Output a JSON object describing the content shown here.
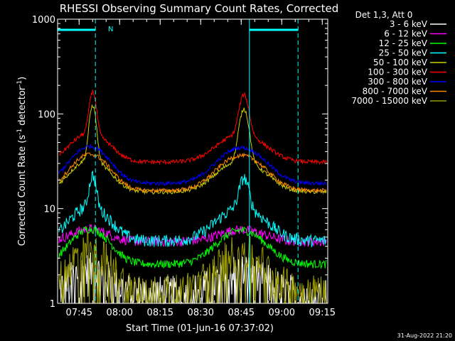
{
  "chart_data": {
    "type": "line",
    "title": "RHESSI Observing Summary Count Rates, Corrected",
    "xlabel": "Start Time (01-Jun-16 07:37:02)",
    "ylabel_main": "Corrected Count Rate (s",
    "ylabel_sup1": "-1",
    "ylabel_mid": " detector",
    "ylabel_sup2": "-1",
    "ylabel_end": ")",
    "yscale": "log",
    "ylim": [
      1,
      1000
    ],
    "xlim_minutes": [
      0,
      100
    ],
    "x_ticks": [
      {
        "label": "07:45",
        "value": 7.97
      },
      {
        "label": "08:00",
        "value": 22.97
      },
      {
        "label": "08:15",
        "value": 37.97
      },
      {
        "label": "08:30",
        "value": 52.97
      },
      {
        "label": "08:45",
        "value": 67.97
      },
      {
        "label": "09:00",
        "value": 82.97
      },
      {
        "label": "09:15",
        "value": 97.97
      }
    ],
    "y_ticks": [
      {
        "label": "1",
        "value": 1
      },
      {
        "label": "10",
        "value": 10
      },
      {
        "label": "100",
        "value": 100
      },
      {
        "label": "1000",
        "value": 1000
      }
    ],
    "legend_header": "Det 1,3, Att 0",
    "legend_location": "top-right",
    "annotation_night": "N",
    "date_stamp": "31-Aug-2022 21:20",
    "night_bars": [
      [
        0,
        14
      ],
      [
        71,
        89
      ]
    ],
    "night_markers": [
      14,
      71,
      89
    ],
    "series": [
      {
        "name": "3 - 6 keV",
        "color": "#ffffff",
        "base": 1.3,
        "flare": 1.0,
        "noise": 0.5
      },
      {
        "name": "6 - 12 keV",
        "color": "#ff00ff",
        "base": 4.5,
        "flare": 1.6,
        "noise": 0.12
      },
      {
        "name": "12 - 25 keV",
        "color": "#00ff00",
        "base": 2.6,
        "flare": 3.5,
        "noise": 0.1
      },
      {
        "name": "25 - 50 keV",
        "color": "#00ffff",
        "base": 4.6,
        "flare": 6.0,
        "noise": 0.15
      },
      {
        "name": "50 - 100 keV",
        "color": "#cccc00",
        "base": 15.0,
        "flare": 18.0,
        "noise": 0.05
      },
      {
        "name": "100 - 300 keV",
        "color": "#ff0000",
        "base": 31.0,
        "flare": 32.0,
        "noise": 0.05
      },
      {
        "name": "300 - 800 keV",
        "color": "#0000ff",
        "base": 18.5,
        "flare": 27.0,
        "noise": 0.05
      },
      {
        "name": "800 - 7000 keV",
        "color": "#ff8800",
        "base": 15.5,
        "flare": 22.0,
        "noise": 0.05
      },
      {
        "name": "7000 - 15000 keV",
        "color": "#999900",
        "base": 1.4,
        "flare": 2.5,
        "noise": 0.45
      }
    ]
  }
}
